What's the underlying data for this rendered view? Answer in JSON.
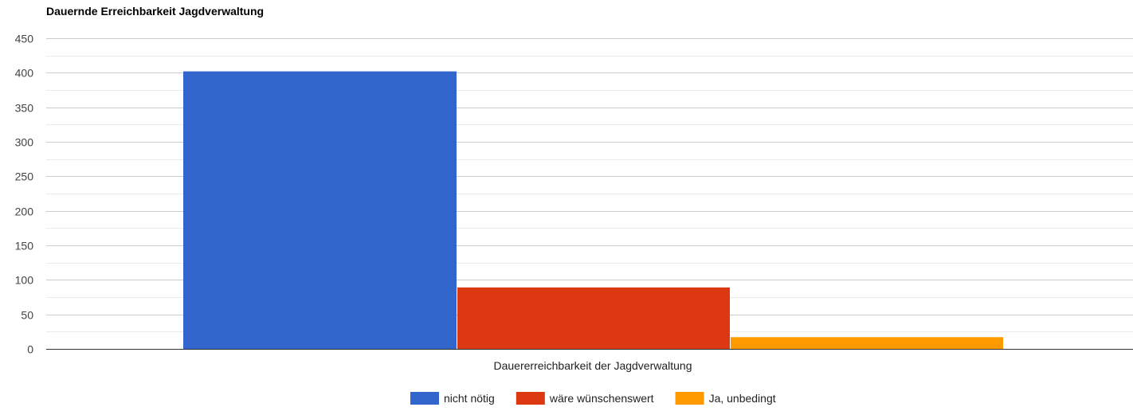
{
  "chart_data": {
    "type": "bar",
    "title": "Dauernde Erreichbarkeit Jagdverwaltung",
    "categories": [
      "Dauererreichbarkeit der Jagdverwaltung"
    ],
    "series": [
      {
        "name": "nicht nötig",
        "values": [
          402
        ],
        "color": "#3366cc"
      },
      {
        "name": "wäre wünschenswert",
        "values": [
          89
        ],
        "color": "#dc3912"
      },
      {
        "name": "Ja, unbedingt",
        "values": [
          17
        ],
        "color": "#ff9900"
      }
    ],
    "ylim": [
      0,
      450
    ],
    "yticks": [
      0,
      50,
      100,
      150,
      200,
      250,
      300,
      350,
      400,
      450
    ],
    "grid": true,
    "legend_position": "bottom"
  }
}
